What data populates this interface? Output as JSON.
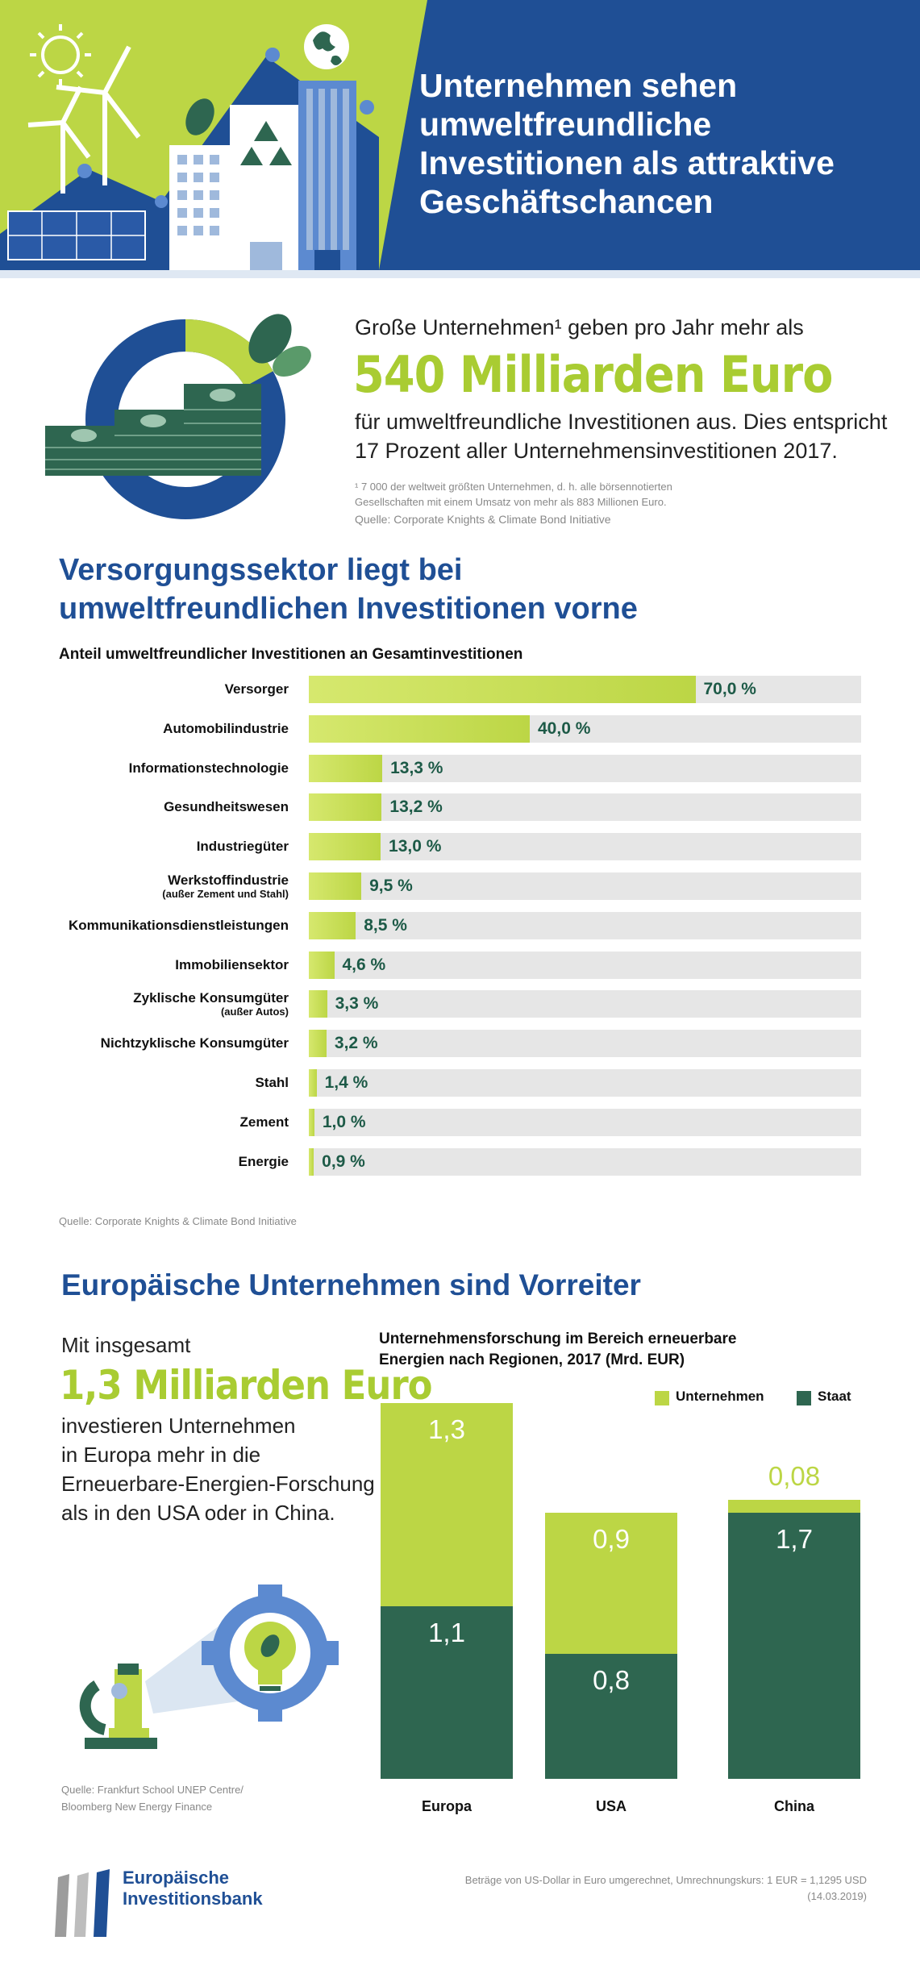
{
  "header": {
    "title_lines": [
      "Unternehmen sehen",
      "umweltfreundliche",
      "Investitionen als attraktive",
      "Geschäftschancen"
    ],
    "colors": {
      "blue": "#1f4f95",
      "green": "#bcd645"
    }
  },
  "intro": {
    "line1": "Große Unternehmen¹ geben pro Jahr mehr als",
    "big": "540 Milliarden Euro",
    "line2": "für umweltfreundliche Investitionen aus. Dies entspricht",
    "line3": "17 Prozent aller Unternehmensinvestitionen 2017.",
    "footnote1": "¹ 7 000 der weltweit größten Unternehmen, d. h. alle börsennotierten",
    "footnote2": "Gesellschaften mit einem Umsatz von mehr als 883 Millionen Euro.",
    "source": "Quelle: Corporate Knights & Climate Bond Initiative",
    "donut_share_percent": 17
  },
  "sector": {
    "title1": "Versorgungssektor liegt bei",
    "title2": "umweltfreundlichen Investitionen vorne",
    "subtitle": "Anteil umweltfreundlicher Investitionen an Gesamtinvestitionen",
    "source": "Quelle: Corporate Knights & Climate Bond Initiative"
  },
  "europe": {
    "title": "Europäische Unternehmen sind Vorreiter",
    "text_line1": "Mit insgesamt",
    "big": "1,3 Milliarden Euro",
    "text_lines": [
      "investieren Unternehmen",
      "in Europa mehr in die",
      "Erneuerbare-Energien-Forschung",
      "als in den USA oder in China."
    ],
    "source1": "Quelle: Frankfurt School UNEP Centre/",
    "source2": "Bloomberg New Energy Finance"
  },
  "footer": {
    "logo_line1": "Europäische",
    "logo_line2": "Investitionsbank",
    "note": "Beträge von US-Dollar in Euro umgerechnet, Umrechnungskurs: 1 EUR = 1,1295 USD (14.03.2019)"
  },
  "chart_data": [
    {
      "type": "bar",
      "orientation": "horizontal",
      "categories": [
        "Versorger",
        "Automobilindustrie",
        "Informationstechnologie",
        "Gesundheitswesen",
        "Industriegüter",
        "Werkstoffindustrie",
        "Kommunikationsdienstleistungen",
        "Immobiliensektor",
        "Zyklische Konsumgüter",
        "Nichtzyklische Konsumgüter",
        "Stahl",
        "Zement",
        "Energie"
      ],
      "category_notes": [
        "",
        "",
        "",
        "",
        "",
        "(außer Zement und Stahl)",
        "",
        "",
        "(außer Autos)",
        "",
        "",
        "",
        ""
      ],
      "values": [
        70.0,
        40.0,
        13.3,
        13.2,
        13.0,
        9.5,
        8.5,
        4.6,
        3.3,
        3.2,
        1.4,
        1.0,
        0.9
      ],
      "value_labels": [
        "70,0 %",
        "40,0 %",
        "13,3 %",
        "13,2 %",
        "13,0 %",
        "9,5 %",
        "8,5 %",
        "4,6 %",
        "3,3 %",
        "3,2 %",
        "1,4 %",
        "1,0 %",
        "0,9 %"
      ],
      "xlim": [
        0,
        100
      ],
      "colors": {
        "bar": "#bcd645",
        "track": "#e6e6e6"
      }
    },
    {
      "type": "bar",
      "stacked": true,
      "title_lines": [
        "Unternehmensforschung im Bereich erneuerbare",
        "Energien nach Regionen, 2017 (Mrd. EUR)"
      ],
      "categories": [
        "Europa",
        "USA",
        "China"
      ],
      "series": [
        {
          "name": "Staat",
          "values": [
            1.1,
            0.8,
            1.7
          ],
          "labels": [
            "1,1",
            "0,8",
            "1,7"
          ],
          "color": "#2e6650"
        },
        {
          "name": "Unternehmen",
          "values": [
            1.3,
            0.9,
            0.08
          ],
          "labels": [
            "1,3",
            "0,9",
            "0,08"
          ],
          "color": "#bcd645"
        }
      ],
      "ylim": [
        0,
        2.4
      ],
      "legend": "top-right"
    }
  ]
}
